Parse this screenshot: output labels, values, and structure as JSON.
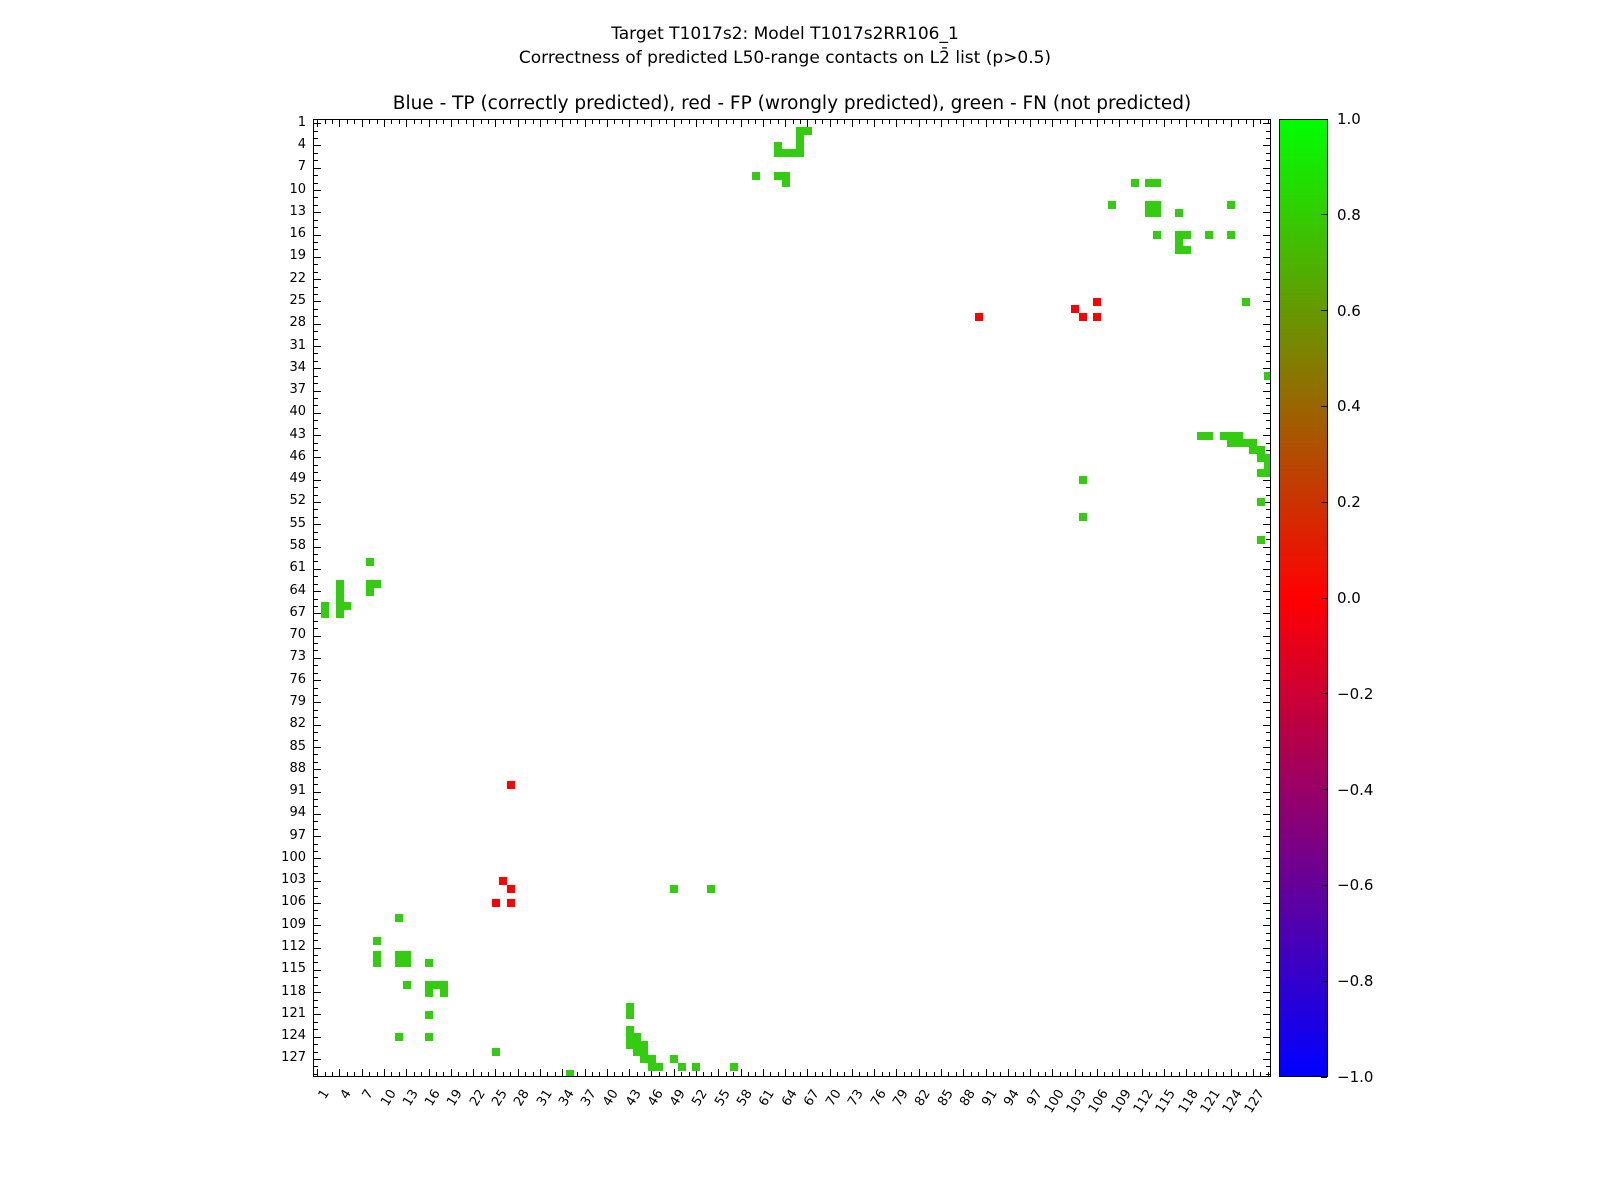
{
  "title": {
    "line1": "Target T1017s2: Model T1017s2RR106_1",
    "line2": "Correctness of predicted L50-range contacts on L2̄ list (p>0.5)"
  },
  "chart_data": {
    "type": "scatter",
    "axes_title": "Blue - TP (correctly predicted), red - FP (wrongly predicted), green - FN (not predicted)",
    "axis_range": [
      0.5,
      129.5
    ],
    "grid": false,
    "legend_position": "none",
    "tick_minor_step": 1,
    "tick_major_step": 3,
    "x_tick_labels": [
      "1",
      "4",
      "7",
      "10",
      "13",
      "16",
      "19",
      "22",
      "25",
      "28",
      "31",
      "34",
      "37",
      "40",
      "43",
      "46",
      "49",
      "52",
      "55",
      "58",
      "61",
      "64",
      "67",
      "70",
      "73",
      "76",
      "79",
      "82",
      "85",
      "88",
      "91",
      "94",
      "97",
      "100",
      "103",
      "106",
      "109",
      "112",
      "115",
      "118",
      "121",
      "124",
      "127"
    ],
    "y_tick_labels": [
      "1",
      "4",
      "7",
      "10",
      "13",
      "16",
      "19",
      "22",
      "25",
      "28",
      "31",
      "34",
      "37",
      "40",
      "43",
      "46",
      "49",
      "52",
      "55",
      "58",
      "61",
      "64",
      "67",
      "70",
      "73",
      "76",
      "79",
      "82",
      "85",
      "88",
      "91",
      "94",
      "97",
      "100",
      "103",
      "106",
      "109",
      "112",
      "115",
      "118",
      "121",
      "124",
      "127"
    ],
    "marker_colors": {
      "tp_blue": "#0000ff",
      "fp_red": "#ff0000",
      "fn_green": "#33cc11"
    },
    "tp_blue_points": [],
    "fp_red_points": [
      [
        106,
        25
      ],
      [
        103,
        26
      ],
      [
        90,
        27
      ],
      [
        104,
        27
      ],
      [
        106,
        27
      ],
      [
        27,
        90
      ],
      [
        26,
        103
      ],
      [
        27,
        104
      ],
      [
        25,
        106
      ],
      [
        27,
        106
      ]
    ],
    "fn_green_points": [
      [
        66,
        2
      ],
      [
        67,
        2
      ],
      [
        66,
        3
      ],
      [
        63,
        4
      ],
      [
        66,
        4
      ],
      [
        63,
        5
      ],
      [
        64,
        5
      ],
      [
        65,
        5
      ],
      [
        66,
        5
      ],
      [
        60,
        8
      ],
      [
        63,
        8
      ],
      [
        64,
        8
      ],
      [
        64,
        9
      ],
      [
        111,
        9
      ],
      [
        113,
        9
      ],
      [
        114,
        9
      ],
      [
        108,
        12
      ],
      [
        113,
        12
      ],
      [
        114,
        12
      ],
      [
        124,
        12
      ],
      [
        113,
        13
      ],
      [
        114,
        13
      ],
      [
        117,
        13
      ],
      [
        114,
        16
      ],
      [
        117,
        16
      ],
      [
        118,
        16
      ],
      [
        121,
        16
      ],
      [
        124,
        16
      ],
      [
        117,
        17
      ],
      [
        117,
        18
      ],
      [
        118,
        18
      ],
      [
        126,
        25
      ],
      [
        129,
        35
      ],
      [
        120,
        43
      ],
      [
        121,
        43
      ],
      [
        123,
        43
      ],
      [
        124,
        43
      ],
      [
        125,
        43
      ],
      [
        124,
        44
      ],
      [
        125,
        44
      ],
      [
        126,
        44
      ],
      [
        127,
        44
      ],
      [
        127,
        45
      ],
      [
        128,
        45
      ],
      [
        128,
        46
      ],
      [
        129,
        46
      ],
      [
        129,
        47
      ],
      [
        128,
        48
      ],
      [
        129,
        48
      ],
      [
        104,
        49
      ],
      [
        128,
        52
      ],
      [
        104,
        54
      ],
      [
        128,
        57
      ],
      [
        8,
        60
      ],
      [
        4,
        63
      ],
      [
        8,
        63
      ],
      [
        9,
        63
      ],
      [
        4,
        64
      ],
      [
        8,
        64
      ],
      [
        4,
        65
      ],
      [
        2,
        66
      ],
      [
        4,
        66
      ],
      [
        5,
        66
      ],
      [
        2,
        67
      ],
      [
        4,
        67
      ],
      [
        49,
        104
      ],
      [
        54,
        104
      ],
      [
        12,
        108
      ],
      [
        9,
        111
      ],
      [
        9,
        113
      ],
      [
        12,
        113
      ],
      [
        13,
        113
      ],
      [
        9,
        114
      ],
      [
        12,
        114
      ],
      [
        13,
        114
      ],
      [
        16,
        114
      ],
      [
        13,
        117
      ],
      [
        16,
        117
      ],
      [
        17,
        117
      ],
      [
        18,
        117
      ],
      [
        16,
        118
      ],
      [
        18,
        118
      ],
      [
        43,
        120
      ],
      [
        43,
        121
      ],
      [
        16,
        121
      ],
      [
        43,
        123
      ],
      [
        43,
        124
      ],
      [
        43,
        125
      ],
      [
        12,
        124
      ],
      [
        16,
        124
      ],
      [
        44,
        124
      ],
      [
        44,
        125
      ],
      [
        45,
        125
      ],
      [
        25,
        126
      ],
      [
        44,
        126
      ],
      [
        45,
        126
      ],
      [
        45,
        127
      ],
      [
        46,
        127
      ],
      [
        49,
        127
      ],
      [
        46,
        128
      ],
      [
        47,
        128
      ],
      [
        50,
        128
      ],
      [
        52,
        128
      ],
      [
        57,
        128
      ],
      [
        35,
        129
      ]
    ],
    "colorbar": {
      "min": -1.0,
      "max": 1.0,
      "tick_labels": [
        "1.0",
        "0.8",
        "0.6",
        "0.4",
        "0.2",
        "0.0",
        "−0.2",
        "−0.4",
        "−0.6",
        "−0.8",
        "−1.0"
      ],
      "gradient_top": "#00ff00",
      "gradient_mid": "#ff0000",
      "gradient_bottom": "#0000ff"
    }
  }
}
